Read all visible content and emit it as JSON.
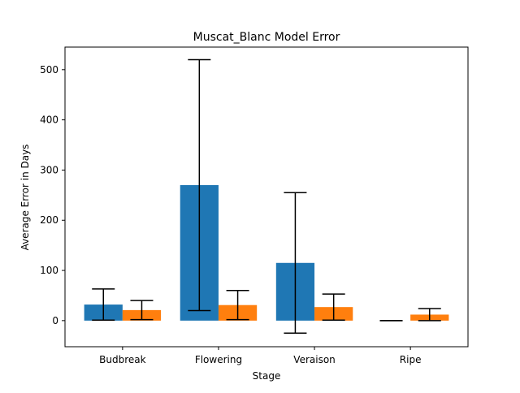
{
  "chart_data": {
    "type": "bar",
    "title": "Muscat_Blanc Model Error",
    "xlabel": "Stage",
    "ylabel": "Average Error in Days",
    "categories": [
      "Budbreak",
      "Flowering",
      "Veraison",
      "Ripe"
    ],
    "ylim": [
      -52,
      545
    ],
    "yticks": [
      0,
      100,
      200,
      300,
      400,
      500
    ],
    "grid": false,
    "legend": "none",
    "series": [
      {
        "color": "#1f77b4",
        "values": [
          32,
          270,
          115,
          0
        ],
        "errors": [
          31,
          250,
          140,
          0
        ]
      },
      {
        "color": "#ff7f0e",
        "values": [
          21,
          31,
          27,
          12
        ],
        "errors": [
          19,
          29,
          26,
          12
        ]
      }
    ]
  }
}
